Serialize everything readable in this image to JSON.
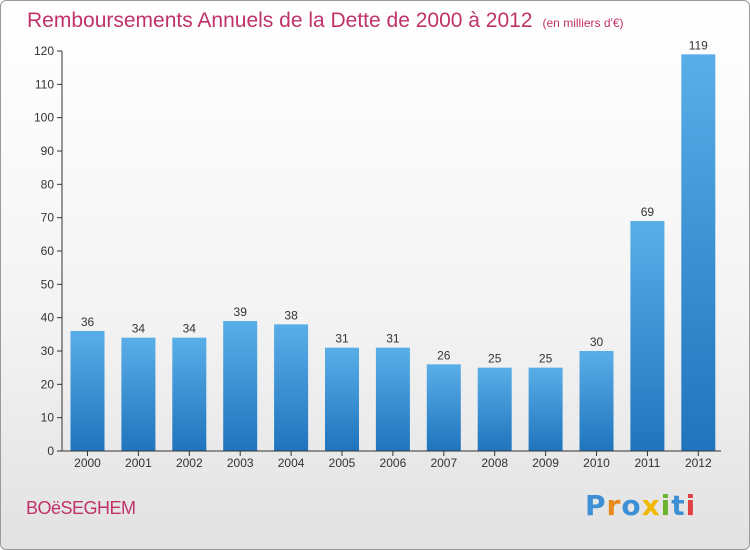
{
  "header": {
    "title": "Remboursements Annuels de la Dette de 2000 à 2012",
    "unit": "(en milliers d'€)"
  },
  "footer": {
    "commune": "BOëSEGHEM",
    "brand": "Proxiti"
  },
  "colors": {
    "title": "#c0336a",
    "bar_top": "#5aaee8",
    "bar_bottom": "#1f74bd",
    "axis": "#333333"
  },
  "chart_data": {
    "type": "bar",
    "title": "Remboursements Annuels de la Dette de 2000 à 2012",
    "subtitle": "(en milliers d'€)",
    "xlabel": "",
    "ylabel": "",
    "categories": [
      "2000",
      "2001",
      "2002",
      "2003",
      "2004",
      "2005",
      "2006",
      "2007",
      "2008",
      "2009",
      "2010",
      "2011",
      "2012"
    ],
    "values": [
      36,
      34,
      34,
      39,
      38,
      31,
      31,
      26,
      25,
      25,
      30,
      69,
      119
    ],
    "ylim": [
      0,
      120
    ],
    "yticks": [
      0,
      10,
      20,
      30,
      40,
      50,
      60,
      70,
      80,
      90,
      100,
      110,
      120
    ],
    "grid": false
  }
}
